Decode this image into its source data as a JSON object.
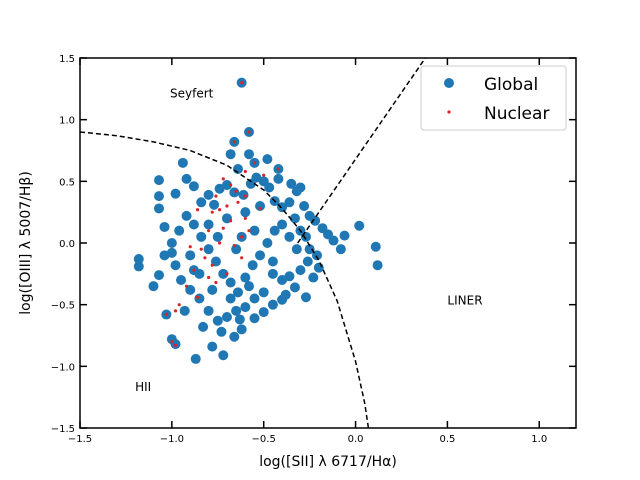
{
  "chart_data": {
    "type": "scatter",
    "xlabel": "log([SII] λ 6717/Hα)",
    "ylabel": "log([OIII] λ 5007/Hβ)",
    "xlim": [
      -1.5,
      1.2
    ],
    "ylim": [
      -1.5,
      1.5
    ],
    "x_ticks": [
      -1.5,
      -1.0,
      -0.5,
      0.0,
      0.5,
      1.0
    ],
    "x_tick_labels": [
      "−1.5",
      "−1.0",
      "−0.5",
      "0.0",
      "0.5",
      "1.0"
    ],
    "y_ticks": [
      -1.5,
      -1.0,
      -0.5,
      0.0,
      0.5,
      1.0,
      1.5
    ],
    "y_tick_labels": [
      "−1.5",
      "−1.0",
      "−0.5",
      "0.0",
      "0.5",
      "1.0",
      "1.5"
    ],
    "grid": false,
    "legend_position": "top-right",
    "annotations": [
      {
        "text": "Seyfert",
        "x": -1.01,
        "y": 1.22
      },
      {
        "text": "HII",
        "x": -1.2,
        "y": -1.16
      },
      {
        "text": "LINER",
        "x": 0.5,
        "y": -0.46
      }
    ],
    "curves": [
      {
        "name": "star-forming boundary",
        "style": "dashed",
        "color": "#000000",
        "x": [
          -1.5,
          -1.3,
          -1.1,
          -0.9,
          -0.7,
          -0.5,
          -0.4,
          -0.3,
          -0.2,
          -0.1,
          0.0,
          0.05,
          0.07
        ],
        "y": [
          0.9,
          0.87,
          0.82,
          0.75,
          0.63,
          0.43,
          0.28,
          0.1,
          -0.14,
          -0.47,
          -0.96,
          -1.3,
          -1.5
        ]
      },
      {
        "name": "Seyfert-LINER line",
        "style": "dashed",
        "color": "#000000",
        "x": [
          -0.315,
          0.38
        ],
        "y": [
          0.0,
          1.5
        ]
      }
    ],
    "series": [
      {
        "name": "Global",
        "marker": "circle",
        "color": "#1f77b4",
        "points": [
          [
            -0.62,
            1.3
          ],
          [
            -0.58,
            0.9
          ],
          [
            -0.66,
            0.82
          ],
          [
            -0.55,
            0.65
          ],
          [
            -0.48,
            0.68
          ],
          [
            -0.42,
            0.6
          ],
          [
            -0.35,
            0.48
          ],
          [
            -0.32,
            0.42
          ],
          [
            -0.28,
            0.3
          ],
          [
            -0.22,
            0.18
          ],
          [
            -0.15,
            0.07
          ],
          [
            -0.12,
            0.02
          ],
          [
            -0.08,
            -0.05
          ],
          [
            0.02,
            0.14
          ],
          [
            0.12,
            -0.18
          ],
          [
            0.11,
            -0.03
          ],
          [
            -0.23,
            -0.28
          ],
          [
            -0.27,
            -0.44
          ],
          [
            -0.33,
            -0.36
          ],
          [
            -0.4,
            -0.46
          ],
          [
            -0.5,
            -0.56
          ],
          [
            -0.55,
            -0.61
          ],
          [
            -0.62,
            -0.7
          ],
          [
            -0.66,
            -0.76
          ],
          [
            -0.72,
            -0.91
          ],
          [
            -0.78,
            -0.84
          ],
          [
            -0.87,
            -0.94
          ],
          [
            -0.98,
            -0.82
          ],
          [
            -1.0,
            -0.78
          ],
          [
            -1.03,
            -0.58
          ],
          [
            -1.07,
            -0.26
          ],
          [
            -1.18,
            -0.13
          ],
          [
            -1.18,
            -0.19
          ],
          [
            -1.07,
            0.28
          ],
          [
            -1.07,
            0.38
          ],
          [
            -1.07,
            0.51
          ],
          [
            -1.04,
            0.13
          ],
          [
            -1.0,
            0.0
          ],
          [
            -0.98,
            0.4
          ],
          [
            -0.94,
            0.65
          ],
          [
            -0.92,
            0.52
          ],
          [
            -0.88,
            0.46
          ],
          [
            -0.84,
            0.33
          ],
          [
            -0.8,
            0.39
          ],
          [
            -0.77,
            0.31
          ],
          [
            -0.74,
            0.44
          ],
          [
            -0.7,
            0.47
          ],
          [
            -0.66,
            0.41
          ],
          [
            -0.64,
            0.6
          ],
          [
            -0.61,
            0.39
          ],
          [
            -0.57,
            0.48
          ],
          [
            -0.54,
            0.53
          ],
          [
            -0.5,
            0.5
          ],
          [
            -0.47,
            0.45
          ],
          [
            -0.44,
            0.34
          ],
          [
            -0.4,
            0.29
          ],
          [
            -0.36,
            0.33
          ],
          [
            -0.33,
            0.2
          ],
          [
            -0.3,
            0.1
          ],
          [
            -0.27,
            0.05
          ],
          [
            -0.25,
            -0.05
          ],
          [
            -0.26,
            -0.15
          ],
          [
            -0.3,
            -0.22
          ],
          [
            -0.36,
            -0.27
          ],
          [
            -0.4,
            -0.3
          ],
          [
            -0.45,
            -0.25
          ],
          [
            -0.5,
            -0.4
          ],
          [
            -0.55,
            -0.45
          ],
          [
            -0.6,
            -0.52
          ],
          [
            -0.65,
            -0.55
          ],
          [
            -0.7,
            -0.6
          ],
          [
            -0.75,
            -0.63
          ],
          [
            -0.8,
            -0.55
          ],
          [
            -0.85,
            -0.45
          ],
          [
            -0.9,
            -0.38
          ],
          [
            -0.95,
            -0.3
          ],
          [
            -0.98,
            -0.18
          ],
          [
            -1.0,
            -0.08
          ],
          [
            -0.96,
            0.1
          ],
          [
            -0.92,
            0.22
          ],
          [
            -0.88,
            0.15
          ],
          [
            -0.84,
            0.05
          ],
          [
            -0.8,
            -0.05
          ],
          [
            -0.76,
            -0.15
          ],
          [
            -0.72,
            -0.25
          ],
          [
            -0.68,
            -0.32
          ],
          [
            -0.64,
            -0.4
          ],
          [
            -0.6,
            -0.28
          ],
          [
            -0.56,
            -0.18
          ],
          [
            -0.52,
            -0.1
          ],
          [
            -0.48,
            0.0
          ],
          [
            -0.44,
            0.1
          ],
          [
            -0.4,
            0.15
          ],
          [
            -0.36,
            0.05
          ],
          [
            -0.32,
            -0.05
          ],
          [
            -0.6,
            0.25
          ],
          [
            -0.7,
            0.2
          ],
          [
            -0.8,
            0.15
          ],
          [
            -0.9,
            -0.1
          ],
          [
            -0.65,
            -0.05
          ],
          [
            -0.55,
            0.1
          ],
          [
            -0.45,
            -0.15
          ],
          [
            -0.75,
            0.05
          ],
          [
            -0.85,
            -0.25
          ],
          [
            -0.62,
            0.05
          ],
          [
            -0.52,
            0.3
          ],
          [
            -0.38,
            -0.42
          ],
          [
            -0.45,
            -0.5
          ],
          [
            -0.58,
            -0.35
          ],
          [
            -0.68,
            -0.45
          ],
          [
            -0.78,
            -0.38
          ],
          [
            -0.88,
            -0.22
          ],
          [
            -0.93,
            -0.55
          ],
          [
            -0.83,
            -0.68
          ],
          [
            -0.73,
            -0.72
          ],
          [
            -0.63,
            -0.62
          ],
          [
            -0.58,
            0.72
          ],
          [
            -0.68,
            0.72
          ],
          [
            -0.42,
            0.52
          ],
          [
            -0.3,
            0.45
          ],
          [
            -0.18,
            0.12
          ],
          [
            -0.21,
            -0.1
          ],
          [
            -0.2,
            -0.2
          ],
          [
            -0.25,
            0.22
          ],
          [
            -0.06,
            0.06
          ],
          [
            -1.04,
            -0.1
          ],
          [
            -1.1,
            -0.35
          ]
        ]
      },
      {
        "name": "Nuclear",
        "marker": "point",
        "color": "#d62728",
        "points": [
          [
            -0.62,
            1.3
          ],
          [
            -0.58,
            0.9
          ],
          [
            -0.66,
            0.82
          ],
          [
            -0.55,
            0.65
          ],
          [
            -0.42,
            0.6
          ],
          [
            -0.6,
            0.58
          ],
          [
            -0.5,
            0.55
          ],
          [
            -0.68,
            0.47
          ],
          [
            -0.72,
            0.52
          ],
          [
            -0.65,
            0.42
          ],
          [
            -0.76,
            0.38
          ],
          [
            -0.6,
            0.38
          ],
          [
            -0.64,
            0.33
          ],
          [
            -0.7,
            0.3
          ],
          [
            -0.78,
            0.25
          ],
          [
            -0.74,
            0.27
          ],
          [
            -0.86,
            0.27
          ],
          [
            -0.52,
            0.28
          ],
          [
            -0.6,
            0.2
          ],
          [
            -0.68,
            0.18
          ],
          [
            -0.72,
            0.12
          ],
          [
            -0.8,
            0.1
          ],
          [
            -0.62,
            0.05
          ],
          [
            -0.66,
            -0.02
          ],
          [
            -0.74,
            0.0
          ],
          [
            -0.84,
            -0.05
          ],
          [
            -0.9,
            -0.03
          ],
          [
            -0.82,
            -0.12
          ],
          [
            -0.78,
            -0.18
          ],
          [
            -0.7,
            -0.25
          ],
          [
            -0.88,
            -0.22
          ],
          [
            -0.92,
            -0.35
          ],
          [
            -0.86,
            -0.44
          ],
          [
            -0.8,
            -0.28
          ],
          [
            -0.96,
            -0.5
          ],
          [
            -0.98,
            -0.55
          ],
          [
            -1.03,
            -0.58
          ],
          [
            -1.0,
            -0.8
          ],
          [
            -0.98,
            -0.83
          ],
          [
            -0.76,
            -0.32
          ],
          [
            -0.62,
            -0.12
          ],
          [
            -0.58,
            0.1
          ]
        ]
      }
    ]
  },
  "legend": {
    "items": [
      {
        "label": "Global",
        "color": "#1f77b4"
      },
      {
        "label": "Nuclear",
        "color": "#d62728"
      }
    ]
  }
}
